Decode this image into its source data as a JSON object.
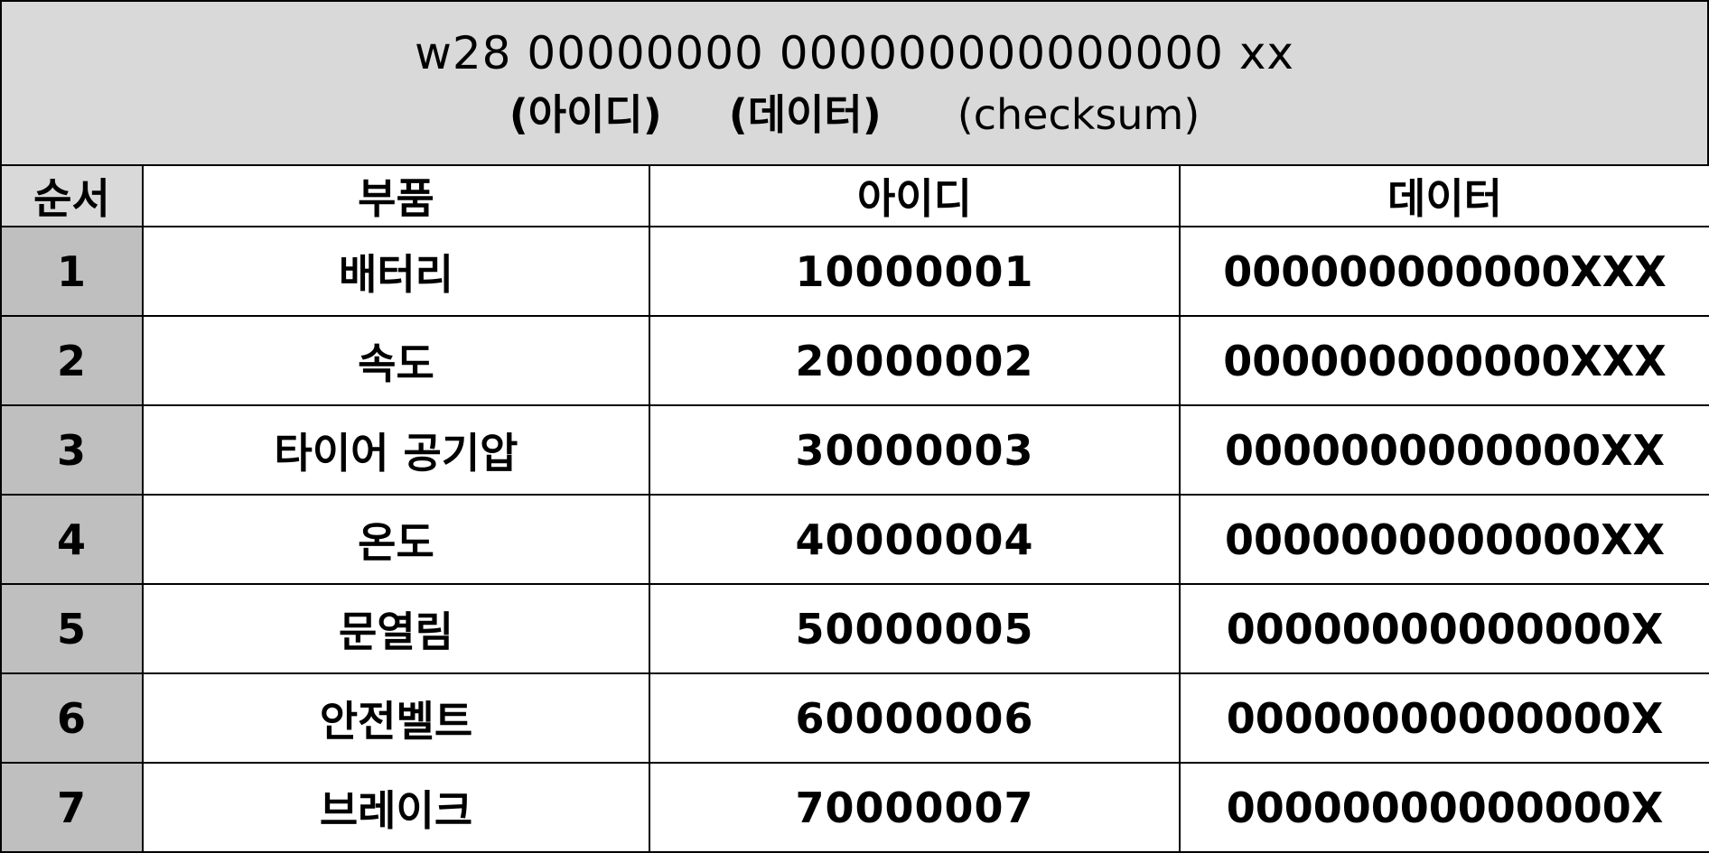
{
  "header": {
    "format_line": "w28 00000000 000000000000000 xx",
    "label_id": "(아이디)",
    "label_data": "(데이터)",
    "label_checksum": "(checksum)"
  },
  "table": {
    "columns": [
      "순서",
      "부품",
      "아이디",
      "데이터"
    ],
    "rows": [
      {
        "order": "1",
        "part": "배터리",
        "id": "10000001",
        "data": "000000000000XXX"
      },
      {
        "order": "2",
        "part": "속도",
        "id": "20000002",
        "data": "000000000000XXX"
      },
      {
        "order": "3",
        "part": "타이어 공기압",
        "id": "30000003",
        "data": "0000000000000XX"
      },
      {
        "order": "4",
        "part": "온도",
        "id": "40000004",
        "data": "0000000000000XX"
      },
      {
        "order": "5",
        "part": "문열림",
        "id": "50000005",
        "data": "00000000000000X"
      },
      {
        "order": "6",
        "part": "안전벨트",
        "id": "60000006",
        "data": "00000000000000X"
      },
      {
        "order": "7",
        "part": "브레이크",
        "id": "70000007",
        "data": "00000000000000X"
      }
    ]
  },
  "colors": {
    "header_bg": "#d9d9d9",
    "order_col_bg": "#bfbfbf",
    "border": "#000000"
  }
}
